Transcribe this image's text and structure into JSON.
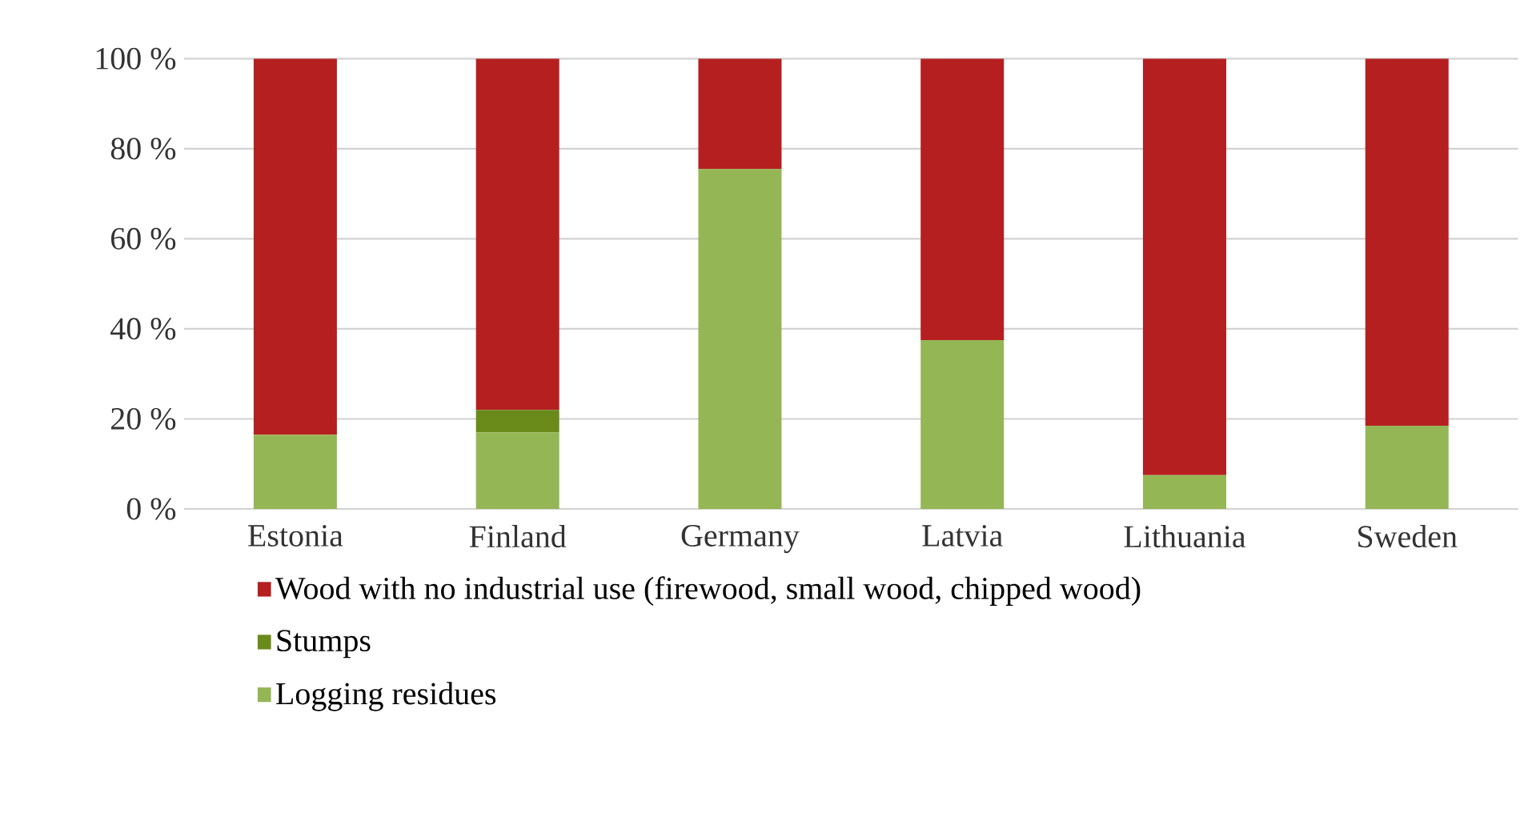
{
  "chart_data": {
    "type": "bar",
    "stacked": true,
    "categories": [
      "Estonia",
      "Finland",
      "Germany",
      "Latvia",
      "Lithuania",
      "Sweden"
    ],
    "series": [
      {
        "name": "Logging residues",
        "color": "#95b655",
        "values": [
          16.5,
          17,
          75.5,
          37.5,
          7.5,
          18.5
        ]
      },
      {
        "name": "Stumps",
        "color": "#6a8a1a",
        "values": [
          0,
          5,
          0,
          0,
          0,
          0
        ]
      },
      {
        "name": "Wood with no industrial use (firewood, small wood, chipped wood)",
        "color": "#b51f20",
        "values": [
          83.5,
          78,
          24.5,
          62.5,
          92.5,
          81.5
        ]
      }
    ],
    "ylim": [
      0,
      100
    ],
    "yticks": [
      {
        "value": 0,
        "label": "0 %"
      },
      {
        "value": 20,
        "label": "20 %"
      },
      {
        "value": 40,
        "label": "40 %"
      },
      {
        "value": 60,
        "label": "60 %"
      },
      {
        "value": 80,
        "label": "80 %"
      },
      {
        "value": 100,
        "label": "100 %"
      }
    ],
    "grid": "y",
    "legend": "bottom"
  }
}
